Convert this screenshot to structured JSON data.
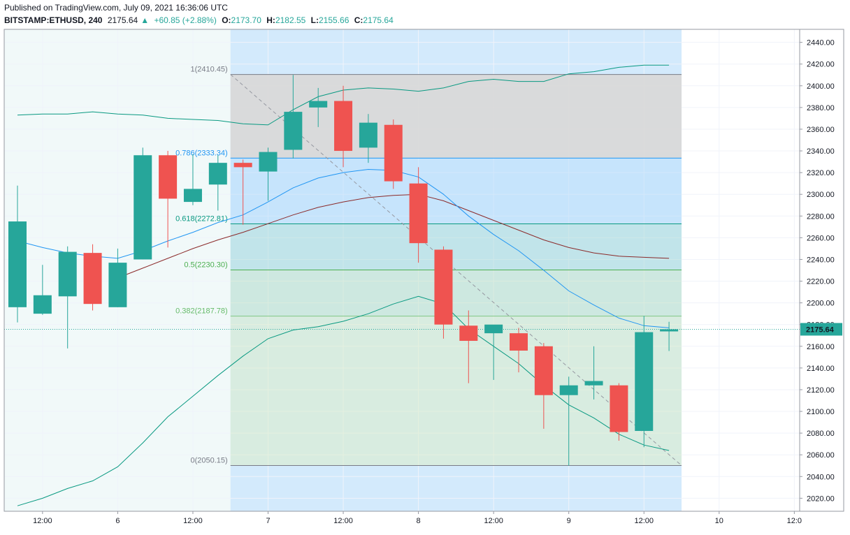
{
  "header": {
    "published": "Published on TradingView.com, July 09, 2021 16:36:06 UTC",
    "symbol": "BITSTAMP:ETHUSD, 240",
    "last": "2175.64",
    "arrow": "▲",
    "change": "+60.85 (+2.88%)",
    "o_label": "O:",
    "o_value": "2173.70",
    "h_label": "H:",
    "h_value": "2182.55",
    "l_label": "L:",
    "l_value": "2155.66",
    "c_label": "C:",
    "c_value": "2175.64"
  },
  "colors": {
    "up": "#26a69a",
    "down": "#ef5350",
    "bb_band": "#089981",
    "bb_basis": "#8b2a2a",
    "ma": "#2196f3",
    "fib_top_zone": "#d1d4dc",
    "fib_mid_zone": "#bbdefb",
    "fib_low_zone": "#c8e6c9",
    "time_highlight": "#bbdefb",
    "price_label_bg": "#26a69a"
  },
  "chart_data": {
    "type": "candlestick",
    "symbol": "BITSTAMP:ETHUSD",
    "interval": "240",
    "yaxis": {
      "ticks": [
        2020,
        2040,
        2060,
        2080,
        2100,
        2120,
        2140,
        2160,
        2180,
        2200,
        2220,
        2240,
        2260,
        2280,
        2300,
        2320,
        2340,
        2360,
        2380,
        2400,
        2420,
        2440
      ],
      "tick_labels": [
        "2020.00",
        "2040.00",
        "2060.00",
        "2080.00",
        "2100.00",
        "2120.00",
        "2140.00",
        "2160.00",
        "2180.00",
        "2200.00",
        "2220.00",
        "2240.00",
        "2260.00",
        "2280.00",
        "2300.00",
        "2320.00",
        "2340.00",
        "2360.00",
        "2380.00",
        "2400.00",
        "2420.00",
        "2440.00"
      ],
      "range": [
        2008,
        2452
      ]
    },
    "xaxis": {
      "tick_labels": [
        "12:00",
        "6",
        "12:00",
        "7",
        "12:00",
        "8",
        "12:00",
        "9",
        "12:00",
        "10",
        "12:0"
      ],
      "tick_bar_index": [
        1,
        4,
        7,
        10,
        13,
        16,
        19,
        22,
        25,
        28,
        31
      ]
    },
    "candles": [
      {
        "o": 2196,
        "h": 2308,
        "l": 2182,
        "c": 2275
      },
      {
        "o": 2190,
        "h": 2235,
        "l": 2189,
        "c": 2207
      },
      {
        "o": 2206,
        "h": 2252,
        "l": 2158,
        "c": 2247
      },
      {
        "o": 2246,
        "h": 2254,
        "l": 2193,
        "c": 2199
      },
      {
        "o": 2196,
        "h": 2250,
        "l": 2196,
        "c": 2237
      },
      {
        "o": 2240,
        "h": 2343,
        "l": 2240,
        "c": 2336
      },
      {
        "o": 2336,
        "h": 2340,
        "l": 2251,
        "c": 2296
      },
      {
        "o": 2293,
        "h": 2337,
        "l": 2290,
        "c": 2305
      },
      {
        "o": 2309,
        "h": 2336,
        "l": 2285,
        "c": 2329
      },
      {
        "o": 2329,
        "h": 2332,
        "l": 2272,
        "c": 2325
      },
      {
        "o": 2321,
        "h": 2343,
        "l": 2294,
        "c": 2339
      },
      {
        "o": 2341,
        "h": 2410,
        "l": 2333,
        "c": 2376
      },
      {
        "o": 2380,
        "h": 2398,
        "l": 2362,
        "c": 2386
      },
      {
        "o": 2386,
        "h": 2400,
        "l": 2325,
        "c": 2340
      },
      {
        "o": 2343,
        "h": 2374,
        "l": 2329,
        "c": 2366
      },
      {
        "o": 2364,
        "h": 2369,
        "l": 2305,
        "c": 2312
      },
      {
        "o": 2310,
        "h": 2325,
        "l": 2237,
        "c": 2255
      },
      {
        "o": 2249,
        "h": 2252,
        "l": 2167,
        "c": 2180
      },
      {
        "o": 2179,
        "h": 2193,
        "l": 2126,
        "c": 2165
      },
      {
        "o": 2172,
        "h": 2178,
        "l": 2129,
        "c": 2180
      },
      {
        "o": 2172,
        "h": 2177,
        "l": 2136,
        "c": 2156
      },
      {
        "o": 2160,
        "h": 2163,
        "l": 2084,
        "c": 2115
      },
      {
        "o": 2115,
        "h": 2132,
        "l": 2050,
        "c": 2124
      },
      {
        "o": 2124,
        "h": 2160,
        "l": 2111,
        "c": 2128
      },
      {
        "o": 2124,
        "h": 2126,
        "l": 2073,
        "c": 2081
      },
      {
        "o": 2082,
        "h": 2188,
        "l": 2067,
        "c": 2173
      },
      {
        "o": 2173.7,
        "h": 2182.55,
        "l": 2155.66,
        "c": 2175.64
      }
    ],
    "bollinger_upper": [
      2373,
      2374,
      2374,
      2376,
      2374,
      2373,
      2370,
      2369,
      2368,
      2365,
      2364,
      2378,
      2390,
      2396,
      2398,
      2397,
      2395,
      2398,
      2404,
      2406,
      2404,
      2404,
      2411,
      2413,
      2417,
      2419,
      2419
    ],
    "bollinger_basis": [
      null,
      null,
      null,
      null,
      2223,
      2232,
      2241,
      2250,
      2258,
      2265,
      2273,
      2281,
      2288,
      2293,
      2297,
      2299,
      2300,
      2294,
      2285,
      2276,
      2267,
      2258,
      2251,
      2246,
      2243,
      2242,
      2241
    ],
    "bollinger_lower": [
      2013,
      2020,
      2029,
      2036,
      2049,
      2071,
      2095,
      2114,
      2133,
      2151,
      2167,
      2175,
      2178,
      2183,
      2190,
      2199,
      2206,
      2199,
      2176,
      2160,
      2144,
      2124,
      2106,
      2094,
      2079,
      2069,
      2064
    ],
    "moving_average": [
      2257,
      2251,
      2246,
      2243,
      2241,
      2248,
      2257,
      2265,
      2274,
      2281,
      2293,
      2306,
      2315,
      2320,
      2323,
      2322,
      2316,
      2300,
      2280,
      2263,
      2248,
      2230,
      2211,
      2198,
      2186,
      2179,
      2177
    ],
    "fibonacci": {
      "start_bar": 8.5,
      "end_bar": 26.5,
      "levels": [
        {
          "ratio": 1,
          "price": 2410.45,
          "label": "1(2410.45)"
        },
        {
          "ratio": 0.786,
          "price": 2333.34,
          "label": "0.786(2333.34)"
        },
        {
          "ratio": 0.618,
          "price": 2272.81,
          "label": "0.618(2272.81)"
        },
        {
          "ratio": 0.5,
          "price": 2230.3,
          "label": "0.5(2230.30)"
        },
        {
          "ratio": 0.382,
          "price": 2187.78,
          "label": "0.382(2187.78)"
        },
        {
          "ratio": 0,
          "price": 2050.15,
          "label": "0(2050.15)"
        }
      ]
    },
    "last_price": 2175.64,
    "last_price_label": "2175.64"
  }
}
